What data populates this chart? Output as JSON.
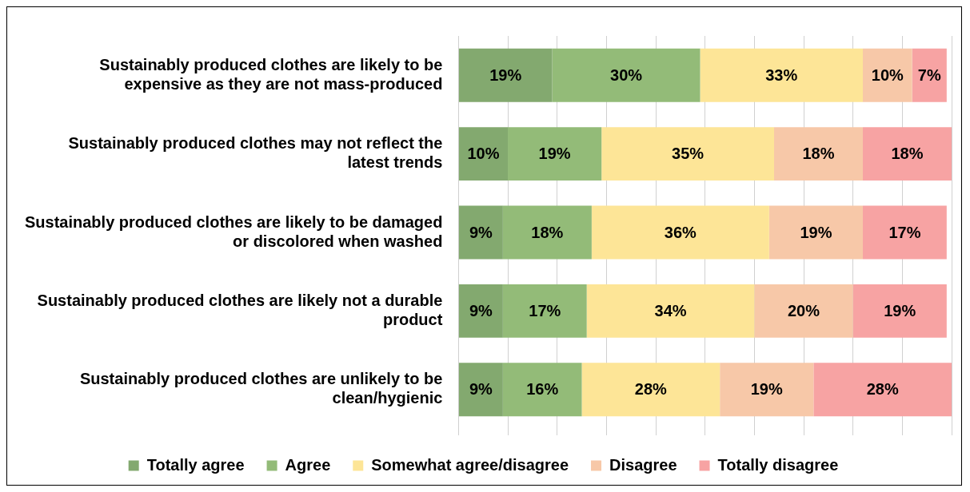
{
  "chart_data": {
    "type": "bar",
    "orientation": "horizontal",
    "stacked": true,
    "grid": "x",
    "legend": "bottom",
    "tick_labels": "y",
    "categories": [
      "Sustainably produced clothes are likely to be expensive as they are not mass-produced",
      "Sustainably produced clothes may not reflect the latest trends",
      "Sustainably produced clothes are likely to be damaged or discolored when washed",
      "Sustainably produced clothes are likely not a durable product",
      "Sustainably produced clothes are unlikely to be clean/hygienic"
    ],
    "series": [
      {
        "name": "Totally agree",
        "color": "#83a96f",
        "values": [
          19,
          10,
          9,
          9,
          9
        ],
        "value_labels": [
          "19%",
          "10%",
          "9%",
          "9%",
          "9%"
        ]
      },
      {
        "name": "Agree",
        "color": "#93bb78",
        "values": [
          30,
          19,
          18,
          17,
          16
        ],
        "value_labels": [
          "30%",
          "19%",
          "18%",
          "17%",
          "16%"
        ]
      },
      {
        "name": "Somewhat agree/disagree",
        "color": "#fde597",
        "values": [
          33,
          35,
          36,
          34,
          28
        ],
        "value_labels": [
          "33%",
          "35%",
          "36%",
          "34%",
          "28%"
        ]
      },
      {
        "name": "Disagree",
        "color": "#f7c8a8",
        "values": [
          10,
          18,
          19,
          20,
          19
        ],
        "value_labels": [
          "10%",
          "18%",
          "19%",
          "20%",
          "19%"
        ]
      },
      {
        "name": "Totally disagree",
        "color": "#f7a3a3",
        "values": [
          7,
          18,
          17,
          19,
          28
        ],
        "value_labels": [
          "7%",
          "18%",
          "17%",
          "19%",
          "28%"
        ]
      }
    ]
  }
}
